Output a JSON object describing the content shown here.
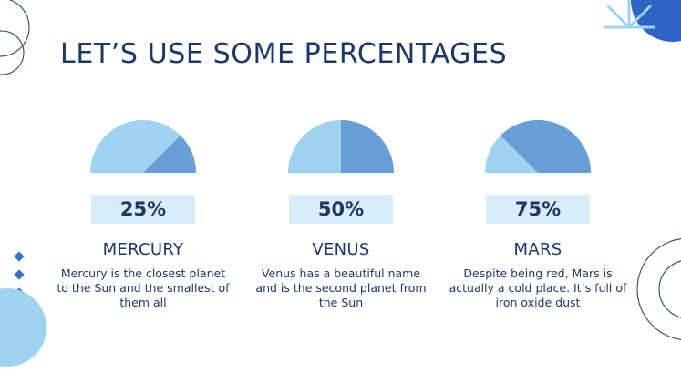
{
  "slide": {
    "title": "LET’S USE SOME PERCENTAGES"
  },
  "colors": {
    "navy": "#1f3763",
    "light_blue": "#9fd3ef",
    "mid_blue": "#6a9ed6",
    "box_bg": "#d9edf8",
    "diamond": "#3d6fc4",
    "royal_blue": "#2f63c6"
  },
  "planets": [
    {
      "percentage": "25%",
      "value": 25,
      "name": "MERCURY",
      "description": "Mercury is the closest planet to the Sun and the smallest of them all"
    },
    {
      "percentage": "50%",
      "value": 50,
      "name": "VENUS",
      "description": "Venus has a beautiful name and is the second planet from the Sun"
    },
    {
      "percentage": "75%",
      "value": 75,
      "name": "MARS",
      "description": "Despite being red, Mars is actually a cold place. It’s full of iron oxide dust"
    }
  ]
}
